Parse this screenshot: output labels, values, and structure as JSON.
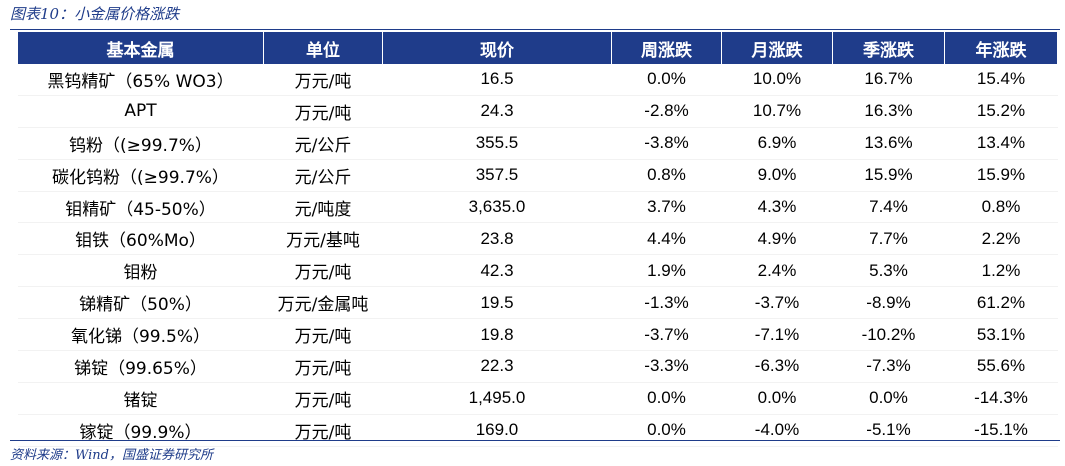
{
  "title": "图表10：小金属价格涨跌",
  "source": "资料来源：Wind，国盛证券研究所",
  "colors": {
    "header_bg": "#1f3c8a",
    "positive": "#ff0000",
    "negative": "#1fae3c",
    "neutral": "#000000"
  },
  "table": {
    "columns": [
      "基本金属",
      "单位",
      "现价",
      "周涨跌",
      "月涨跌",
      "季涨跌",
      "年涨跌"
    ],
    "rows": [
      [
        "黑钨精矿（65% WO3）",
        "万元/吨",
        "16.5",
        "0.0%",
        "10.0%",
        "16.7%",
        "15.4%"
      ],
      [
        "APT",
        "万元/吨",
        "24.3",
        "-2.8%",
        "10.7%",
        "16.3%",
        "15.2%"
      ],
      [
        "钨粉（(≥99.7%）",
        "元/公斤",
        "355.5",
        "-3.8%",
        "6.9%",
        "13.6%",
        "13.4%"
      ],
      [
        "碳化钨粉（(≥99.7%）",
        "元/公斤",
        "357.5",
        "0.8%",
        "9.0%",
        "15.9%",
        "15.9%"
      ],
      [
        "钼精矿（45-50%）",
        "元/吨度",
        "3,635.0",
        "3.7%",
        "4.3%",
        "7.4%",
        "0.8%"
      ],
      [
        "钼铁（60%Mo）",
        "万元/基吨",
        "23.8",
        "4.4%",
        "4.9%",
        "7.7%",
        "2.2%"
      ],
      [
        "钼粉",
        "万元/吨",
        "42.3",
        "1.9%",
        "2.4%",
        "5.3%",
        "1.2%"
      ],
      [
        "锑精矿（50%）",
        "万元/金属吨",
        "19.5",
        "-1.3%",
        "-3.7%",
        "-8.9%",
        "61.2%"
      ],
      [
        "氧化锑（99.5%）",
        "万元/吨",
        "19.8",
        "-3.7%",
        "-7.1%",
        "-10.2%",
        "53.1%"
      ],
      [
        "锑锭（99.65%）",
        "万元/吨",
        "22.3",
        "-3.3%",
        "-6.3%",
        "-7.3%",
        "55.6%"
      ],
      [
        "锗锭",
        "万元/吨",
        "1,495.0",
        "0.0%",
        "0.0%",
        "0.0%",
        "-14.3%"
      ],
      [
        "镓锭（99.9%）",
        "万元/吨",
        "169.0",
        "0.0%",
        "-4.0%",
        "-5.1%",
        "-15.1%"
      ]
    ]
  }
}
